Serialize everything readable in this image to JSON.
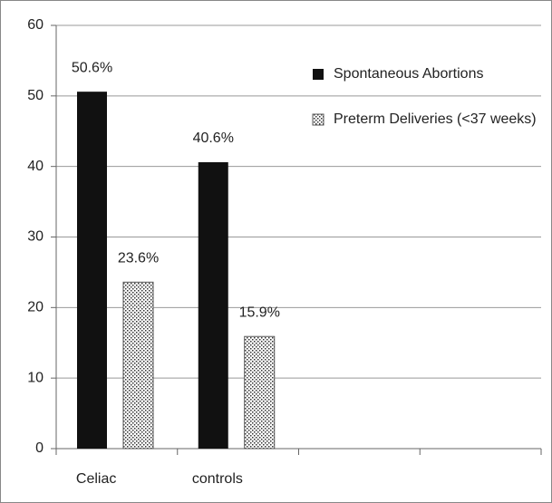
{
  "chart_data": {
    "type": "bar",
    "categories": [
      "Celiac",
      "controls",
      null,
      null
    ],
    "series": [
      {
        "name": "Spontaneous Abortions",
        "color": "#111111",
        "values": [
          50.6,
          40.6,
          null,
          null
        ],
        "value_labels": [
          "50.6%",
          "40.6%",
          null,
          null
        ]
      },
      {
        "name": "Preterm Deliveries (<37 weeks)",
        "color": "#ffffff",
        "fill_pattern": "dots",
        "values": [
          23.6,
          15.9,
          null,
          null
        ],
        "value_labels": [
          "23.6%",
          "15.9%",
          null,
          null
        ]
      }
    ],
    "ylim": [
      0,
      60
    ],
    "yticks": [
      0,
      10,
      20,
      30,
      40,
      50,
      60
    ],
    "grid": true,
    "legend": "top-right"
  }
}
